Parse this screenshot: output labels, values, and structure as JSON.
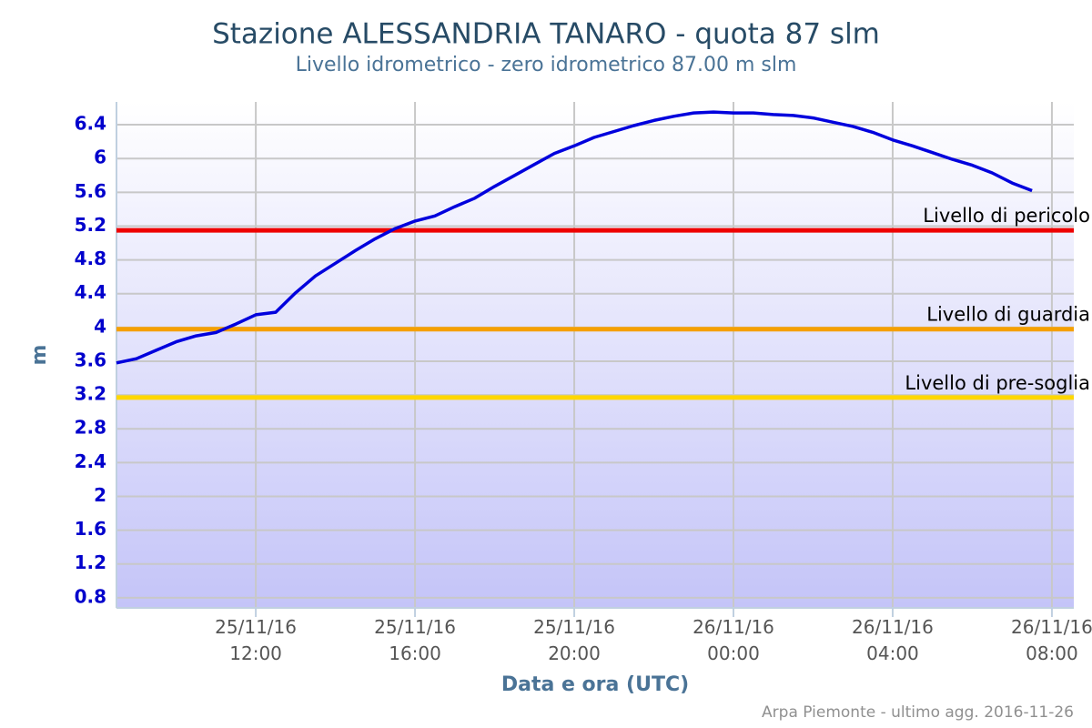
{
  "chart_data": {
    "type": "line",
    "title": "Stazione ALESSANDRIA TANARO - quota 87 slm",
    "subtitle": "Livello idrometrico - zero idrometrico 87.00 m slm",
    "x_label": "Data e ora (UTC)",
    "y_label": "m",
    "credits": "Arpa Piemonte - ultimo agg. 2016-11-26",
    "x": [
      "2016-11-25T08:30",
      "2016-11-25T09:00",
      "2016-11-25T09:30",
      "2016-11-25T10:00",
      "2016-11-25T10:30",
      "2016-11-25T11:00",
      "2016-11-25T11:30",
      "2016-11-25T12:00",
      "2016-11-25T12:30",
      "2016-11-25T13:00",
      "2016-11-25T13:30",
      "2016-11-25T14:00",
      "2016-11-25T14:30",
      "2016-11-25T15:00",
      "2016-11-25T15:30",
      "2016-11-25T16:00",
      "2016-11-25T16:30",
      "2016-11-25T17:00",
      "2016-11-25T17:30",
      "2016-11-25T18:00",
      "2016-11-25T18:30",
      "2016-11-25T19:00",
      "2016-11-25T19:30",
      "2016-11-25T20:00",
      "2016-11-25T20:30",
      "2016-11-25T21:00",
      "2016-11-25T21:30",
      "2016-11-25T22:00",
      "2016-11-25T22:30",
      "2016-11-25T23:00",
      "2016-11-25T23:30",
      "2016-11-26T00:00",
      "2016-11-26T00:30",
      "2016-11-26T01:00",
      "2016-11-26T01:30",
      "2016-11-26T02:00",
      "2016-11-26T02:30",
      "2016-11-26T03:00",
      "2016-11-26T03:30",
      "2016-11-26T04:00",
      "2016-11-26T04:30",
      "2016-11-26T05:00",
      "2016-11-26T05:30",
      "2016-11-26T06:00",
      "2016-11-26T06:30",
      "2016-11-26T07:00",
      "2016-11-26T07:30"
    ],
    "series": [
      {
        "name": "Livello idrometrico",
        "color": "#0000dd",
        "values": [
          3.58,
          3.63,
          3.73,
          3.83,
          3.9,
          3.94,
          4.04,
          4.15,
          4.18,
          4.41,
          4.61,
          4.76,
          4.91,
          5.05,
          5.17,
          5.26,
          5.32,
          5.43,
          5.53,
          5.67,
          5.8,
          5.93,
          6.06,
          6.15,
          6.25,
          6.32,
          6.39,
          6.45,
          6.5,
          6.54,
          6.55,
          6.54,
          6.54,
          6.52,
          6.51,
          6.48,
          6.43,
          6.38,
          6.31,
          6.22,
          6.15,
          6.07,
          5.99,
          5.92,
          5.83,
          5.71,
          5.62
        ]
      }
    ],
    "plot_lines": [
      {
        "label": "Livello di pericolo",
        "value": 5.15,
        "color": "#ee0000"
      },
      {
        "label": "Livello di guardia",
        "value": 3.98,
        "color": "#f5a000"
      },
      {
        "label": "Livello di pre-soglia",
        "value": 3.17,
        "color": "#ffd700"
      }
    ],
    "xlim": [
      "2016-11-25T08:30",
      "2016-11-26T08:33"
    ],
    "xticks": [
      {
        "value": "2016-11-25T12:00",
        "label": "25/11/16 12:00"
      },
      {
        "value": "2016-11-25T16:00",
        "label": "25/11/16 16:00"
      },
      {
        "value": "2016-11-25T20:00",
        "label": "25/11/16 20:00"
      },
      {
        "value": "2016-11-26T00:00",
        "label": "26/11/16 00:00"
      },
      {
        "value": "2016-11-26T04:00",
        "label": "26/11/16 04:00"
      },
      {
        "value": "2016-11-26T08:00",
        "label": "26/11/16 08:00"
      }
    ],
    "ylim": [
      0.68,
      6.67
    ],
    "yticks": [
      0.8,
      1.2,
      1.6,
      2,
      2.4,
      2.8,
      3.2,
      3.6,
      4,
      4.4,
      4.8,
      5.2,
      5.6,
      6,
      6.4
    ],
    "grid": true
  }
}
